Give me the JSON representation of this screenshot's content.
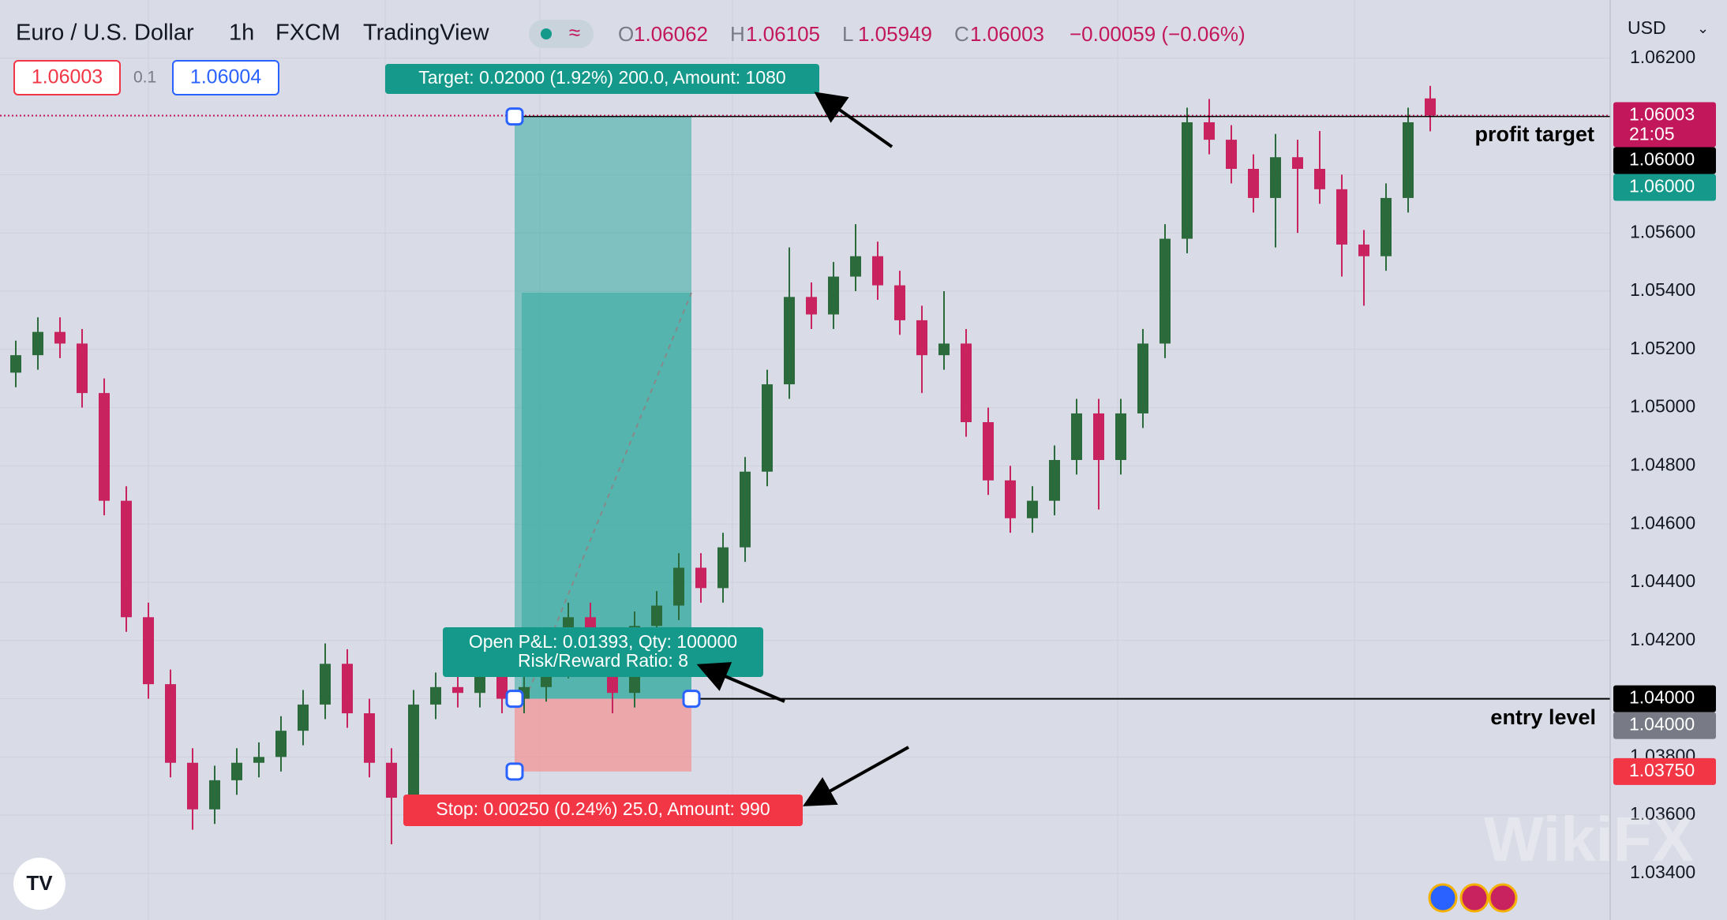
{
  "header": {
    "symbol": "Euro / U.S. Dollar",
    "interval": "1h",
    "exchange": "FXCM",
    "source": "TradingView",
    "ohlc": [
      {
        "key": "O",
        "value": "1.06062"
      },
      {
        "key": "H",
        "value": "1.06105"
      },
      {
        "key": "L",
        "value": "1.05949"
      },
      {
        "key": "C",
        "value": "1.06003"
      }
    ],
    "change": "−0.00059 (−0.06%)",
    "sell_price": "1.06003",
    "spread": "0.1",
    "buy_price": "1.06004",
    "currency": "USD"
  },
  "chart_data": {
    "type": "candlestick",
    "open": [
      1.0512,
      1.0518,
      1.0526,
      1.0522,
      1.0505,
      1.0468,
      1.0428,
      1.0405,
      1.0378,
      1.0362,
      1.0372,
      1.0378,
      1.038,
      1.0389,
      1.0398,
      1.0412,
      1.0395,
      1.0378,
      1.0366,
      1.0398,
      1.0404,
      1.0402,
      1.0408,
      1.04,
      1.0404,
      1.0412,
      1.0428,
      1.0418,
      1.0402,
      1.0425,
      1.0432,
      1.0445,
      1.0438,
      1.0452,
      1.0478,
      1.0508,
      1.0538,
      1.0532,
      1.0545,
      1.0552,
      1.0542,
      1.053,
      1.0518,
      1.0522,
      1.0495,
      1.0475,
      1.0462,
      1.0468,
      1.0482,
      1.0498,
      1.0482,
      1.0498,
      1.0522,
      1.0558,
      1.0598,
      1.0592,
      1.0582,
      1.0572,
      1.0586,
      1.0582,
      1.0575,
      1.0556,
      1.0552,
      1.0572,
      1.06062
    ],
    "high": [
      1.0523,
      1.0531,
      1.0531,
      1.0527,
      1.051,
      1.0473,
      1.0433,
      1.041,
      1.0383,
      1.0377,
      1.0383,
      1.0385,
      1.0394,
      1.0403,
      1.0419,
      1.0417,
      1.04,
      1.0383,
      1.0403,
      1.0409,
      1.0409,
      1.0413,
      1.0413,
      1.0409,
      1.0417,
      1.0433,
      1.0433,
      1.0423,
      1.043,
      1.0437,
      1.045,
      1.045,
      1.0457,
      1.0483,
      1.0513,
      1.0555,
      1.0543,
      1.055,
      1.0563,
      1.0557,
      1.0547,
      1.0535,
      1.054,
      1.0527,
      1.05,
      1.048,
      1.0473,
      1.0487,
      1.0503,
      1.0503,
      1.0503,
      1.0527,
      1.0563,
      1.0603,
      1.0606,
      1.0597,
      1.0587,
      1.0594,
      1.0592,
      1.0595,
      1.058,
      1.0561,
      1.0577,
      1.0603,
      1.06105
    ],
    "low": [
      1.0507,
      1.0513,
      1.0517,
      1.05,
      1.0463,
      1.0423,
      1.04,
      1.0373,
      1.0355,
      1.0357,
      1.0367,
      1.0373,
      1.0375,
      1.0384,
      1.0393,
      1.039,
      1.0373,
      1.035,
      1.0361,
      1.0393,
      1.0397,
      1.0397,
      1.0395,
      1.0395,
      1.0399,
      1.0407,
      1.0413,
      1.0395,
      1.0397,
      1.042,
      1.0427,
      1.0433,
      1.0433,
      1.0447,
      1.0473,
      1.0503,
      1.0527,
      1.0527,
      1.054,
      1.0537,
      1.0525,
      1.0505,
      1.0513,
      1.049,
      1.047,
      1.0457,
      1.0457,
      1.0463,
      1.0477,
      1.0465,
      1.0477,
      1.0493,
      1.0517,
      1.0553,
      1.0587,
      1.0577,
      1.0567,
      1.0555,
      1.056,
      1.057,
      1.0545,
      1.0535,
      1.0547,
      1.0567,
      1.05949
    ],
    "close": [
      1.0518,
      1.0526,
      1.0522,
      1.0505,
      1.0468,
      1.0428,
      1.0405,
      1.0378,
      1.0362,
      1.0372,
      1.0378,
      1.038,
      1.0389,
      1.0398,
      1.0412,
      1.0395,
      1.0378,
      1.0366,
      1.0398,
      1.0404,
      1.0402,
      1.0408,
      1.04,
      1.0404,
      1.0412,
      1.0428,
      1.0418,
      1.0402,
      1.0425,
      1.0432,
      1.0445,
      1.0438,
      1.0452,
      1.0478,
      1.0508,
      1.0538,
      1.0532,
      1.0545,
      1.0552,
      1.0542,
      1.053,
      1.0518,
      1.0522,
      1.0495,
      1.0475,
      1.0462,
      1.0468,
      1.0482,
      1.0498,
      1.0482,
      1.0498,
      1.0522,
      1.0558,
      1.0598,
      1.0592,
      1.0582,
      1.0572,
      1.0586,
      1.0582,
      1.0575,
      1.0556,
      1.0552,
      1.0572,
      1.0598,
      1.06003
    ],
    "up_color": "#2b6b3b",
    "down_color": "#c8225f",
    "ylim": [
      1.0324,
      1.064
    ],
    "yticks": [
      {
        "value": 1.034,
        "label": "1.03400"
      },
      {
        "value": 1.036,
        "label": "1.03600"
      },
      {
        "value": 1.038,
        "label": "1.03800"
      },
      {
        "value": 1.04,
        "label": "1.04000"
      },
      {
        "value": 1.042,
        "label": "1.04200"
      },
      {
        "value": 1.044,
        "label": "1.04400"
      },
      {
        "value": 1.046,
        "label": "1.04600"
      },
      {
        "value": 1.048,
        "label": "1.04800"
      },
      {
        "value": 1.05,
        "label": "1.05000"
      },
      {
        "value": 1.052,
        "label": "1.05200"
      },
      {
        "value": 1.054,
        "label": "1.05400"
      },
      {
        "value": 1.056,
        "label": "1.05600"
      },
      {
        "value": 1.058,
        "label": "1.05800"
      },
      {
        "value": 1.06,
        "label": "1.06000"
      },
      {
        "value": 1.062,
        "label": "1.06200"
      }
    ],
    "grid": true,
    "price_badges": [
      {
        "value": 1.06003,
        "label": "1.06003",
        "sub": "21:05",
        "color": "#c2185b"
      },
      {
        "value": 1.06,
        "label": "1.06000",
        "color": "#000000"
      },
      {
        "value": 1.06,
        "label": "1.06000",
        "color": "#14998a"
      },
      {
        "value": 1.04,
        "label": "1.04000",
        "color": "#000000"
      },
      {
        "value": 1.04,
        "label": "1.04000",
        "color": "#787b86"
      },
      {
        "value": 1.0375,
        "label": "1.03750",
        "color": "#f23645"
      }
    ],
    "position": {
      "target": 1.06,
      "entry": 1.04,
      "stop": 1.0375,
      "target_label": "Target: 0.02000 (1.92%) 200.0, Amount: 1080",
      "pnl_label": "Open P&L: 0.01393, Qty: 100000",
      "rr_label": "Risk/Reward Ratio: 8",
      "stop_label": "Stop: 0.00250 (0.24%) 25.0, Amount: 990"
    },
    "annotations": [
      "profit target",
      "entry level"
    ],
    "watermark": "WikiFX"
  }
}
